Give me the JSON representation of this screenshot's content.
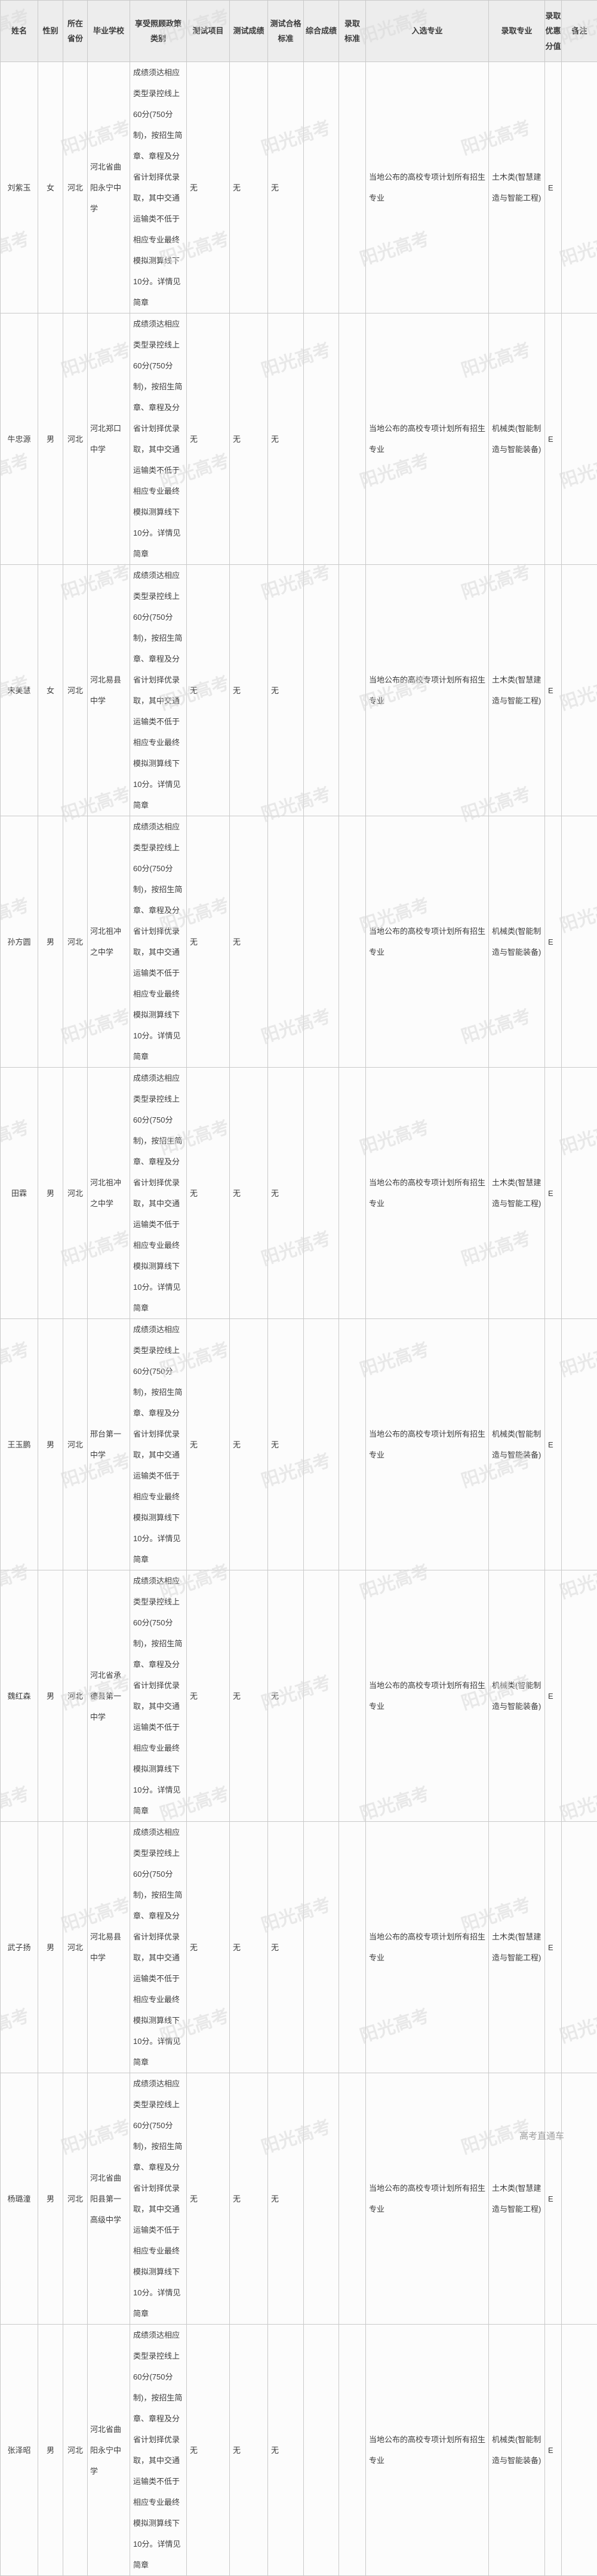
{
  "table": {
    "columns": [
      {
        "id": "name",
        "label": "姓名"
      },
      {
        "id": "gender",
        "label": "性别"
      },
      {
        "id": "province",
        "label": "所在\n省份"
      },
      {
        "id": "school",
        "label": "毕业学校"
      },
      {
        "id": "policy",
        "label": "享受照顾政策\n类别"
      },
      {
        "id": "test_item",
        "label": "测试项目"
      },
      {
        "id": "test_score",
        "label": "测试成绩"
      },
      {
        "id": "test_standard",
        "label": "测试合格\n标准"
      },
      {
        "id": "overall_score",
        "label": "综合成绩"
      },
      {
        "id": "admit_standard",
        "label": "录取\n标准"
      },
      {
        "id": "selected_major",
        "label": "入选专业"
      },
      {
        "id": "admitted_major",
        "label": "录取专业"
      },
      {
        "id": "bonus",
        "label": "录取\n优惠\n分值"
      },
      {
        "id": "remark",
        "label": "备注"
      }
    ],
    "rows": [
      {
        "name": "刘紫玉",
        "gender": "女",
        "province": "河北",
        "school": "河北省曲阳永宁中学",
        "policy": "成绩须达相应类型录控线上60分(750分制)，按招生简章、章程及分省计划择优录取，其中交通运输类不低于相应专业最终模拟测算线下10分。详情见简章",
        "test_item": "无",
        "test_score": "无",
        "test_standard": "无",
        "overall_score": "",
        "admit_standard": "",
        "selected_major": "当地公布的高校专项计划所有招生专业",
        "admitted_major": "土木类(智慧建造与智能工程)",
        "bonus": "E",
        "remark": ""
      },
      {
        "name": "牛忠源",
        "gender": "男",
        "province": "河北",
        "school": "河北郑口中学",
        "policy": "成绩须达相应类型录控线上60分(750分制)，按招生简章、章程及分省计划择优录取，其中交通运输类不低于相应专业最终模拟测算线下10分。详情见简章",
        "test_item": "无",
        "test_score": "无",
        "test_standard": "无",
        "overall_score": "",
        "admit_standard": "",
        "selected_major": "当地公布的高校专项计划所有招生专业",
        "admitted_major": "机械类(智能制造与智能装备)",
        "bonus": "E",
        "remark": ""
      },
      {
        "name": "宋美慧",
        "gender": "女",
        "province": "河北",
        "school": "河北易县中学",
        "policy": "成绩须达相应类型录控线上60分(750分制)，按招生简章、章程及分省计划择优录取，其中交通运输类不低于相应专业最终模拟测算线下10分。详情见简章",
        "test_item": "无",
        "test_score": "无",
        "test_standard": "无",
        "overall_score": "",
        "admit_standard": "",
        "selected_major": "当地公布的高校专项计划所有招生专业",
        "admitted_major": "土木类(智慧建造与智能工程)",
        "bonus": "E",
        "remark": ""
      },
      {
        "name": "孙方圆",
        "gender": "男",
        "province": "河北",
        "school": "河北祖冲之中学",
        "policy": "成绩须达相应类型录控线上60分(750分制)，按招生简章、章程及分省计划择优录取，其中交通运输类不低于相应专业最终模拟测算线下10分。详情见简章",
        "test_item": "无",
        "test_score": "无",
        "test_standard": "",
        "overall_score": "",
        "admit_standard": "",
        "selected_major": "当地公布的高校专项计划所有招生专业",
        "admitted_major": "机械类(智能制造与智能装备)",
        "bonus": "E",
        "remark": ""
      },
      {
        "name": "田霖",
        "gender": "男",
        "province": "河北",
        "school": "河北祖冲之中学",
        "policy": "成绩须达相应类型录控线上60分(750分制)，按招生简章、章程及分省计划择优录取，其中交通运输类不低于相应专业最终模拟测算线下10分。详情见简章",
        "test_item": "无",
        "test_score": "无",
        "test_standard": "无",
        "overall_score": "",
        "admit_standard": "",
        "selected_major": "当地公布的高校专项计划所有招生专业",
        "admitted_major": "土木类(智慧建造与智能工程)",
        "bonus": "E",
        "remark": ""
      },
      {
        "name": "王玉鹏",
        "gender": "男",
        "province": "河北",
        "school": "邢台第一中学",
        "policy": "成绩须达相应类型录控线上60分(750分制)，按招生简章、章程及分省计划择优录取，其中交通运输类不低于相应专业最终模拟测算线下10分。详情见简章",
        "test_item": "无",
        "test_score": "无",
        "test_standard": "无",
        "overall_score": "",
        "admit_standard": "",
        "selected_major": "当地公布的高校专项计划所有招生专业",
        "admitted_major": "机械类(智能制造与智能装备)",
        "bonus": "E",
        "remark": ""
      },
      {
        "name": "魏红森",
        "gender": "男",
        "province": "河北",
        "school": "河北省承德县第一中学",
        "policy": "成绩须达相应类型录控线上60分(750分制)，按招生简章、章程及分省计划择优录取，其中交通运输类不低于相应专业最终模拟测算线下10分。详情见简章",
        "test_item": "无",
        "test_score": "无",
        "test_standard": "无",
        "overall_score": "",
        "admit_standard": "",
        "selected_major": "当地公布的高校专项计划所有招生专业",
        "admitted_major": "机械类(智能制造与智能装备)",
        "bonus": "E",
        "remark": ""
      },
      {
        "name": "武子扬",
        "gender": "男",
        "province": "河北",
        "school": "河北易县中学",
        "policy": "成绩须达相应类型录控线上60分(750分制)，按招生简章、章程及分省计划择优录取，其中交通运输类不低于相应专业最终模拟测算线下10分。详情见简章",
        "test_item": "无",
        "test_score": "无",
        "test_standard": "无",
        "overall_score": "",
        "admit_standard": "",
        "selected_major": "当地公布的高校专项计划所有招生专业",
        "admitted_major": "土木类(智慧建造与智能工程)",
        "bonus": "E",
        "remark": ""
      },
      {
        "name": "杨璐潼",
        "gender": "男",
        "province": "河北",
        "school": "河北省曲阳县第一高级中学",
        "policy": "成绩须达相应类型录控线上60分(750分制)，按招生简章、章程及分省计划择优录取，其中交通运输类不低于相应专业最终模拟测算线下10分。详情见简章",
        "test_item": "无",
        "test_score": "无",
        "test_standard": "无",
        "overall_score": "",
        "admit_standard": "",
        "selected_major": "当地公布的高校专项计划所有招生专业",
        "admitted_major": "土木类(智慧建造与智能工程)",
        "bonus": "E",
        "remark": ""
      },
      {
        "name": "张泽昭",
        "gender": "男",
        "province": "河北",
        "school": "河北省曲阳永宁中学",
        "policy": "成绩须达相应类型录控线上60分(750分制)，按招生简章、章程及分省计划择优录取，其中交通运输类不低于相应专业最终模拟测算线下10分。详情见简章",
        "test_item": "无",
        "test_score": "无",
        "test_standard": "无",
        "overall_score": "",
        "admit_standard": "",
        "selected_major": "当地公布的高校专项计划所有招生专业",
        "admitted_major": "机械类(智能制造与智能装备)",
        "bonus": "E",
        "remark": ""
      }
    ]
  },
  "watermark": {
    "tile": "阳光高考",
    "brand": "高考直通车"
  },
  "colors": {
    "header_bg": "#ededed",
    "cell_bg": "#fcfcfc",
    "border": "#c9c9c9",
    "watermark": "#d9d9d9",
    "brand_watermark": "#9f9f9f"
  }
}
